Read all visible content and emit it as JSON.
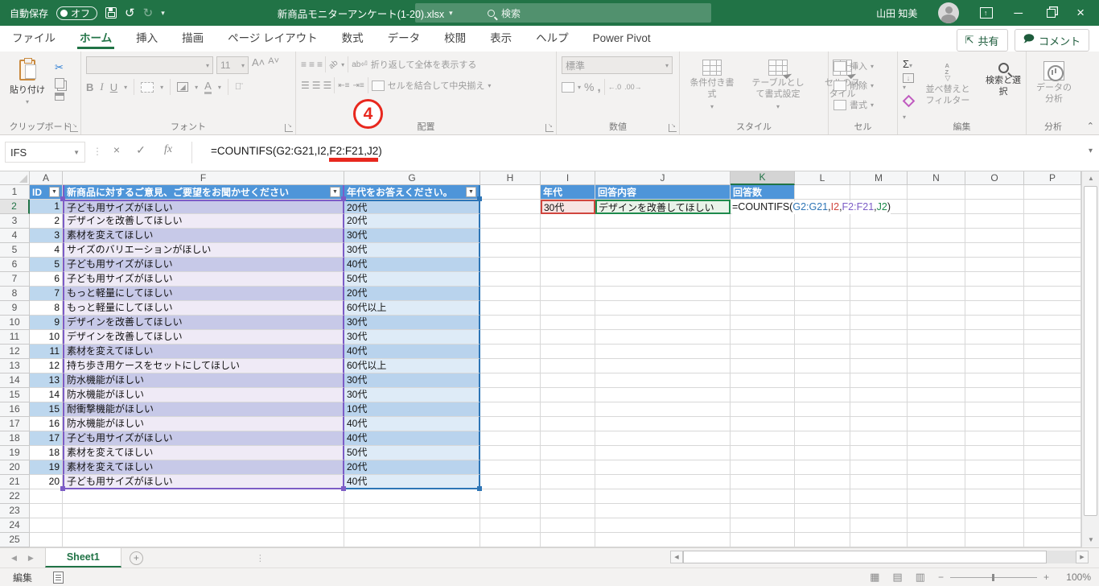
{
  "colors": {
    "accent_green": "#217346",
    "table_header_blue": "#4E95D9",
    "band_blue": "#BDD7EE",
    "ref_purple": "#7C5CC6",
    "ref_blue": "#2E75B6",
    "ref_red": "#D0453E",
    "ref_green": "#1E8A4C",
    "annotation_red": "#E8281E"
  },
  "titlebar": {
    "autosave_label": "自動保存",
    "autosave_state": "オフ",
    "filename": "新商品モニターアンケート(1-20).xlsx",
    "search_placeholder": "検索",
    "user_name": "山田 知美"
  },
  "ribbon_tabs": [
    {
      "label": "ファイル"
    },
    {
      "label": "ホーム",
      "active": true
    },
    {
      "label": "挿入"
    },
    {
      "label": "描画"
    },
    {
      "label": "ページ レイアウト"
    },
    {
      "label": "数式"
    },
    {
      "label": "データ"
    },
    {
      "label": "校閲"
    },
    {
      "label": "表示"
    },
    {
      "label": "ヘルプ"
    },
    {
      "label": "Power Pivot"
    }
  ],
  "ribbon_actions": {
    "share": "共有",
    "comments": "コメント"
  },
  "ribbon": {
    "clipboard": {
      "label": "クリップボード",
      "paste": "貼り付け"
    },
    "font": {
      "label": "フォント",
      "size": "11"
    },
    "alignment": {
      "label": "配置",
      "wrap": "折り返して全体を表示する",
      "merge": "セルを結合して中央揃え"
    },
    "number": {
      "label": "数値",
      "format": "標準"
    },
    "styles": {
      "label": "スタイル",
      "conditional": "条件付き書式",
      "format_table": "テーブルとして書式設定",
      "cell_styles": "セルのスタイル"
    },
    "cells": {
      "label": "セル",
      "insert": "挿入",
      "delete": "削除",
      "format": "書式"
    },
    "editing": {
      "label": "編集",
      "sort_filter": "並べ替えとフィルター",
      "find_select": "検索と選択"
    },
    "analysis": {
      "label": "分析",
      "analyze": "データの分析"
    }
  },
  "formula_bar": {
    "name_box": "IFS",
    "prefix": "=COUNTIFS(G2:G21,I2,",
    "underlined": "F2:F21,J2",
    "suffix": ")"
  },
  "annotation": {
    "number": "4"
  },
  "sheet": {
    "columns": [
      "A",
      "F",
      "G",
      "H",
      "I",
      "J",
      "K",
      "L",
      "M",
      "N",
      "O",
      "P"
    ],
    "active_column": "K",
    "active_row": "2",
    "table_headers": {
      "id": "ID",
      "opinion": "新商品に対するご意見、ご要望をお聞かせください",
      "age": "年代をお答えください。"
    },
    "rows": [
      {
        "id": "1",
        "opinion": "子ども用サイズがほしい",
        "age": "20代"
      },
      {
        "id": "2",
        "opinion": "デザインを改善してほしい",
        "age": "20代"
      },
      {
        "id": "3",
        "opinion": "素材を変えてほしい",
        "age": "30代"
      },
      {
        "id": "4",
        "opinion": "サイズのバリエーションがほしい",
        "age": "30代"
      },
      {
        "id": "5",
        "opinion": "子ども用サイズがほしい",
        "age": "40代"
      },
      {
        "id": "6",
        "opinion": "子ども用サイズがほしい",
        "age": "50代"
      },
      {
        "id": "7",
        "opinion": "もっと軽量にしてほしい",
        "age": "20代"
      },
      {
        "id": "8",
        "opinion": "もっと軽量にしてほしい",
        "age": "60代以上"
      },
      {
        "id": "9",
        "opinion": "デザインを改善してほしい",
        "age": "30代"
      },
      {
        "id": "10",
        "opinion": "デザインを改善してほしい",
        "age": "30代"
      },
      {
        "id": "11",
        "opinion": "素材を変えてほしい",
        "age": "40代"
      },
      {
        "id": "12",
        "opinion": "持ち歩き用ケースをセットにしてほしい",
        "age": "60代以上"
      },
      {
        "id": "13",
        "opinion": "防水機能がほしい",
        "age": "30代"
      },
      {
        "id": "14",
        "opinion": "防水機能がほしい",
        "age": "30代"
      },
      {
        "id": "15",
        "opinion": "耐衝撃機能がほしい",
        "age": "10代"
      },
      {
        "id": "16",
        "opinion": "防水機能がほしい",
        "age": "40代"
      },
      {
        "id": "17",
        "opinion": "子ども用サイズがほしい",
        "age": "40代"
      },
      {
        "id": "18",
        "opinion": "素材を変えてほしい",
        "age": "50代"
      },
      {
        "id": "19",
        "opinion": "素材を変えてほしい",
        "age": "20代"
      },
      {
        "id": "20",
        "opinion": "子ども用サイズがほしい",
        "age": "40代"
      }
    ],
    "lookup": {
      "age_header": "年代",
      "answer_header": "回答内容",
      "count_header": "回答数",
      "age_value": "30代",
      "answer_value": "デザインを改善してほしい",
      "formula_parts": [
        {
          "text": "=COUNTIFS(",
          "color": "#1a1a1a"
        },
        {
          "text": "G2:G21",
          "color": "#2E75B6"
        },
        {
          "text": ",",
          "color": "#1a1a1a"
        },
        {
          "text": "I2",
          "color": "#D0453E"
        },
        {
          "text": ",",
          "color": "#1a1a1a"
        },
        {
          "text": "F2:F21",
          "color": "#7C5CC6"
        },
        {
          "text": ",",
          "color": "#1a1a1a"
        },
        {
          "text": "J2",
          "color": "#1E8A4C"
        },
        {
          "text": ")",
          "color": "#1a1a1a"
        }
      ]
    }
  },
  "sheet_tabs": {
    "active": "Sheet1"
  },
  "status_bar": {
    "mode": "編集",
    "zoom_level": "100%"
  }
}
